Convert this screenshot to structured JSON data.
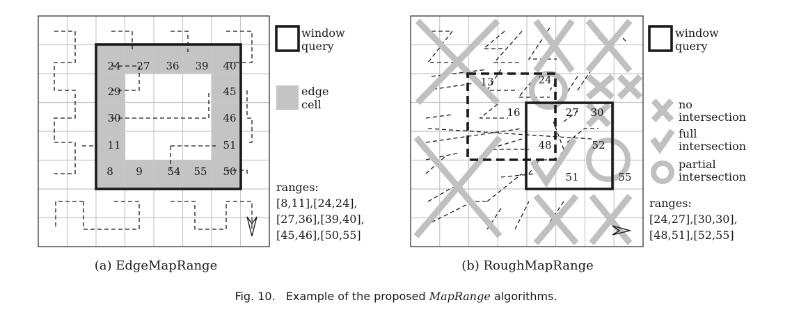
{
  "figure_caption": {
    "prefix": "Fig. 10.",
    "text_before": "Example of the proposed ",
    "emph": "MapRange",
    "text_after": " algorithms."
  },
  "panel_a": {
    "caption": "(a) EdgeMapRange",
    "legend": {
      "window_line1": "window",
      "window_line2": "query",
      "edge_line1": "edge",
      "edge_line2": "cell"
    },
    "cell_labels": [
      "24",
      "27",
      "36",
      "39",
      "40",
      "29",
      "45",
      "30",
      "46",
      "11",
      "51",
      "8",
      "9",
      "54",
      "55",
      "50"
    ],
    "ranges_title": "ranges:",
    "ranges_lines": [
      "[8,11],[24,24],",
      "[27,36],[39,40],",
      "[45,46],[50,55]"
    ]
  },
  "panel_b": {
    "caption": "(b) RoughMapRange",
    "legend": {
      "window_line1": "window",
      "window_line2": "query",
      "no_line1": "no",
      "no_line2": "intersection",
      "full_line1": "full",
      "full_line2": "intersection",
      "partial_line1": "partial",
      "partial_line2": "intersection"
    },
    "cell_labels": [
      "13",
      "24",
      "16",
      "27",
      "30",
      "48",
      "52",
      "51",
      "55"
    ],
    "ranges_title": "ranges:",
    "ranges_lines": [
      "[24,27],[30,30],",
      "[48,51],[52,55]"
    ]
  },
  "colors": {
    "edge_cell": "#c4c4c4",
    "mark": "#c0c0c0",
    "grid": "#c8c8c8"
  }
}
